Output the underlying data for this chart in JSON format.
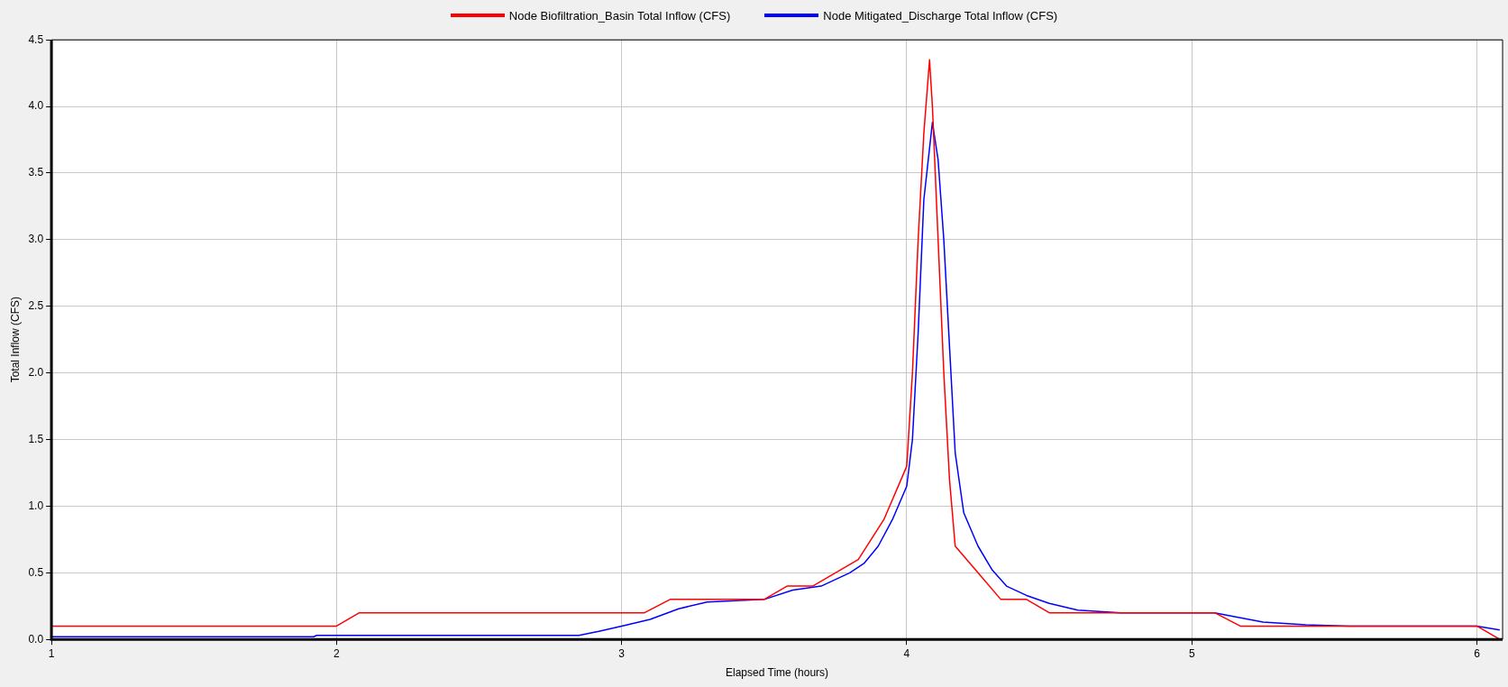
{
  "chart_data": {
    "type": "line",
    "xlabel": "Elapsed Time (hours)",
    "ylabel": "Total Inflow (CFS)",
    "xlim": [
      1,
      6.09
    ],
    "xticks": [
      1,
      2,
      3,
      4,
      5,
      6
    ],
    "ylim": [
      0,
      4.5
    ],
    "yticks": [
      {
        "value": 0,
        "label": "0.0"
      },
      {
        "value": 0.5,
        "label": "0.5"
      },
      {
        "value": 1,
        "label": "1.0"
      },
      {
        "value": 1.5,
        "label": "1.5"
      },
      {
        "value": 2,
        "label": "2.0"
      },
      {
        "value": 2.5,
        "label": "2.5"
      },
      {
        "value": 3,
        "label": "3.0"
      },
      {
        "value": 3.5,
        "label": "3.5"
      },
      {
        "value": 4,
        "label": "4.0"
      },
      {
        "value": 4.5,
        "label": "4.5"
      }
    ],
    "grid": true,
    "legend": "top",
    "marker": "none",
    "line_style": "solid",
    "series": [
      {
        "name": "Node Biofiltration_Basin Total Inflow (CFS)",
        "color": "#ff0000",
        "x": [
          1,
          2,
          2.08,
          3.08,
          3.17,
          3.5,
          3.58,
          3.67,
          3.83,
          3.92,
          4.0,
          4.02,
          4.04,
          4.06,
          4.08,
          4.09,
          4.11,
          4.13,
          4.15,
          4.17,
          4.25,
          4.33,
          4.42,
          4.5,
          5.08,
          5.17,
          6.0,
          6.08
        ],
        "values": [
          0.1,
          0.1,
          0.2,
          0.2,
          0.3,
          0.3,
          0.4,
          0.4,
          0.6,
          0.9,
          1.3,
          2.0,
          3.0,
          3.8,
          4.35,
          4.0,
          3.0,
          2.0,
          1.2,
          0.7,
          0.5,
          0.3,
          0.3,
          0.2,
          0.2,
          0.1,
          0.1,
          0.0
        ]
      },
      {
        "name": "Node Mitigated_Discharge Total Inflow (CFS)",
        "color": "#0000ff",
        "x": [
          1,
          1.92,
          1.93,
          2.85,
          2.92,
          3.0,
          3.1,
          3.2,
          3.3,
          3.5,
          3.6,
          3.7,
          3.8,
          3.85,
          3.9,
          3.95,
          4.0,
          4.02,
          4.04,
          4.06,
          4.09,
          4.11,
          4.13,
          4.15,
          4.17,
          4.2,
          4.25,
          4.3,
          4.35,
          4.42,
          4.5,
          4.6,
          4.75,
          5.08,
          5.15,
          5.25,
          5.4,
          5.55,
          6.0,
          6.08
        ],
        "values": [
          0.02,
          0.02,
          0.03,
          0.03,
          0.06,
          0.1,
          0.15,
          0.23,
          0.28,
          0.3,
          0.37,
          0.4,
          0.5,
          0.57,
          0.7,
          0.9,
          1.15,
          1.5,
          2.3,
          3.3,
          3.88,
          3.6,
          3.0,
          2.2,
          1.4,
          0.95,
          0.7,
          0.52,
          0.4,
          0.33,
          0.27,
          0.22,
          0.2,
          0.2,
          0.17,
          0.13,
          0.11,
          0.1,
          0.1,
          0.07
        ]
      }
    ]
  }
}
